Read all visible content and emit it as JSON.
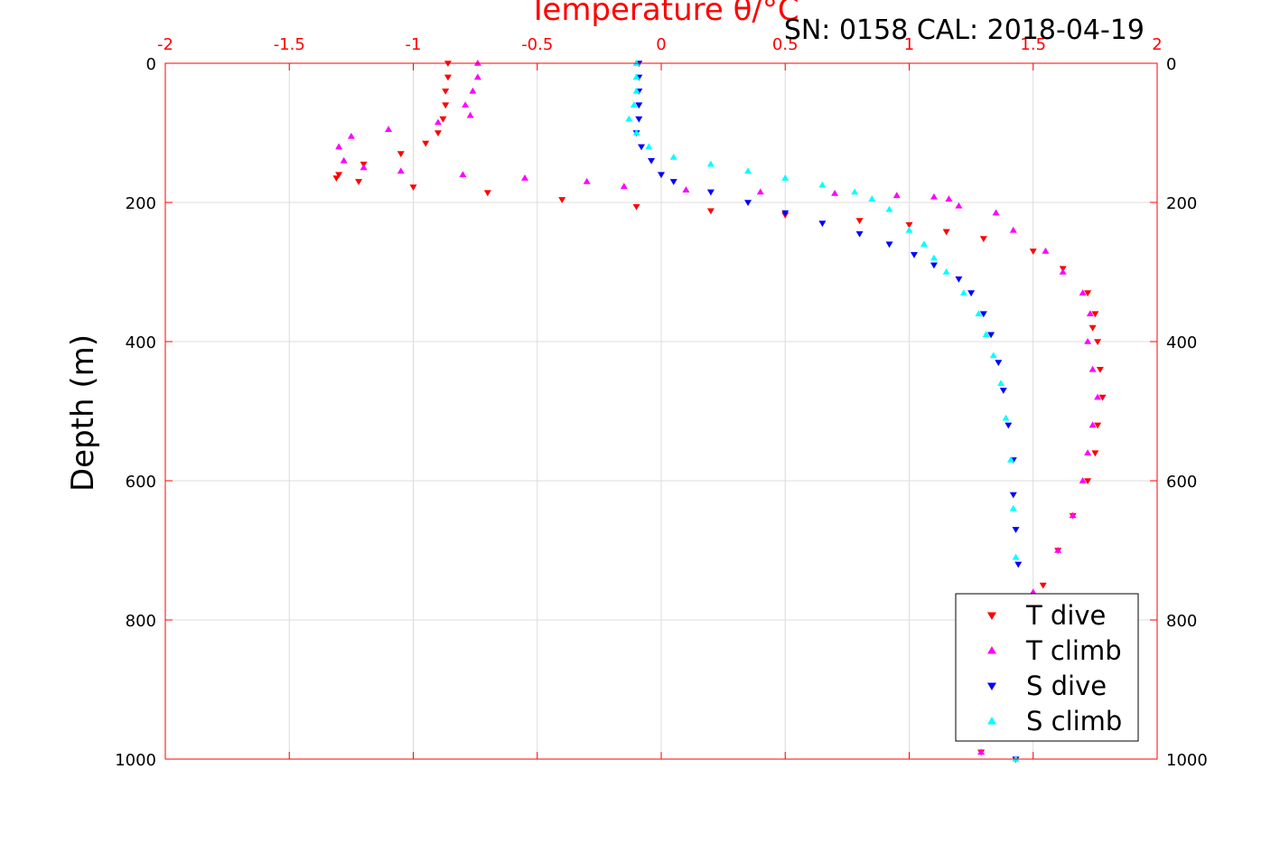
{
  "chart_data": {
    "type": "scatter",
    "title": "Temperature θ/°C",
    "subtitle": "SN: 0158  CAL: 2018-04-19",
    "xlabel": "Temperature θ/°C",
    "ylabel": "Depth (m)",
    "xlim": [
      -2,
      2
    ],
    "ylim": [
      0,
      1000
    ],
    "y_reversed": true,
    "x_axis_position": "top",
    "x_ticks": [
      -2,
      -1.5,
      -1,
      -0.5,
      0,
      0.5,
      1,
      1.5,
      2
    ],
    "x_tick_labels": [
      "-2",
      "-1.5",
      "-1",
      "-0.5",
      "0",
      "0.5",
      "1",
      "1.5",
      "2"
    ],
    "y_ticks": [
      0,
      200,
      400,
      600,
      800,
      1000
    ],
    "y_tick_labels": [
      "0",
      "200",
      "400",
      "600",
      "800",
      "1000"
    ],
    "grid": true,
    "legend_position": "bottom-right",
    "axis_color": "#ff0000",
    "series": [
      {
        "name": "T dive",
        "marker": "triangle-down",
        "color": "#ff0000",
        "x": [
          -0.86,
          -0.86,
          -0.87,
          -0.87,
          -0.88,
          -0.9,
          -0.95,
          -1.05,
          -1.2,
          -1.3,
          -1.31,
          -1.22,
          -1.0,
          -0.7,
          -0.4,
          -0.1,
          0.2,
          0.5,
          0.8,
          1.0,
          1.15,
          1.3,
          1.5,
          1.62,
          1.72,
          1.75,
          1.74,
          1.76,
          1.77,
          1.78,
          1.76,
          1.75,
          1.72,
          1.66,
          1.6,
          1.54,
          1.47,
          1.4,
          1.33,
          1.29
        ],
        "y": [
          0,
          20,
          40,
          60,
          80,
          100,
          115,
          130,
          145,
          160,
          165,
          170,
          178,
          186,
          196,
          206,
          212,
          218,
          226,
          232,
          242,
          252,
          270,
          295,
          330,
          360,
          380,
          400,
          440,
          480,
          520,
          560,
          600,
          650,
          700,
          750,
          800,
          850,
          920,
          990
        ]
      },
      {
        "name": "T climb",
        "marker": "triangle-up",
        "color": "#ff00ff",
        "x": [
          -0.74,
          -0.74,
          -0.76,
          -0.79,
          -0.77,
          -0.9,
          -1.1,
          -1.25,
          -1.3,
          -1.28,
          -1.2,
          -1.05,
          -0.8,
          -0.55,
          -0.3,
          -0.15,
          0.1,
          0.4,
          0.7,
          0.95,
          1.1,
          1.16,
          1.2,
          1.35,
          1.42,
          1.55,
          1.62,
          1.7,
          1.73,
          1.72,
          1.74,
          1.76,
          1.74,
          1.72,
          1.7,
          1.66,
          1.6,
          1.5,
          1.39,
          1.29
        ],
        "y": [
          0,
          20,
          40,
          60,
          75,
          85,
          95,
          105,
          120,
          140,
          150,
          155,
          160,
          165,
          170,
          177,
          182,
          185,
          187,
          190,
          192,
          195,
          205,
          215,
          240,
          270,
          300,
          330,
          360,
          400,
          440,
          480,
          520,
          560,
          600,
          650,
          700,
          760,
          860,
          990
        ]
      },
      {
        "name": "S dive",
        "marker": "triangle-down",
        "color": "#0000ff",
        "x": [
          -0.09,
          -0.09,
          -0.09,
          -0.09,
          -0.09,
          -0.1,
          -0.08,
          -0.04,
          0.0,
          0.05,
          0.2,
          0.35,
          0.5,
          0.65,
          0.8,
          0.92,
          1.02,
          1.1,
          1.2,
          1.25,
          1.3,
          1.33,
          1.36,
          1.38,
          1.4,
          1.42,
          1.42,
          1.43,
          1.44,
          1.45,
          1.44,
          1.43
        ],
        "y": [
          0,
          20,
          40,
          60,
          80,
          100,
          120,
          140,
          160,
          170,
          185,
          200,
          215,
          230,
          245,
          260,
          275,
          290,
          310,
          330,
          360,
          390,
          430,
          470,
          520,
          570,
          620,
          670,
          720,
          780,
          880,
          1000
        ]
      },
      {
        "name": "S climb",
        "marker": "triangle-up",
        "color": "#00ffff",
        "x": [
          -0.1,
          -0.1,
          -0.1,
          -0.11,
          -0.13,
          -0.1,
          -0.05,
          0.05,
          0.2,
          0.35,
          0.5,
          0.65,
          0.78,
          0.85,
          0.92,
          1.0,
          1.06,
          1.1,
          1.15,
          1.22,
          1.28,
          1.31,
          1.34,
          1.37,
          1.39,
          1.41,
          1.42,
          1.43,
          1.44,
          1.44,
          1.43
        ],
        "y": [
          0,
          20,
          40,
          60,
          80,
          100,
          120,
          135,
          145,
          155,
          165,
          175,
          185,
          195,
          210,
          240,
          260,
          280,
          300,
          330,
          360,
          390,
          420,
          460,
          510,
          570,
          640,
          710,
          780,
          880,
          1000
        ]
      }
    ]
  }
}
